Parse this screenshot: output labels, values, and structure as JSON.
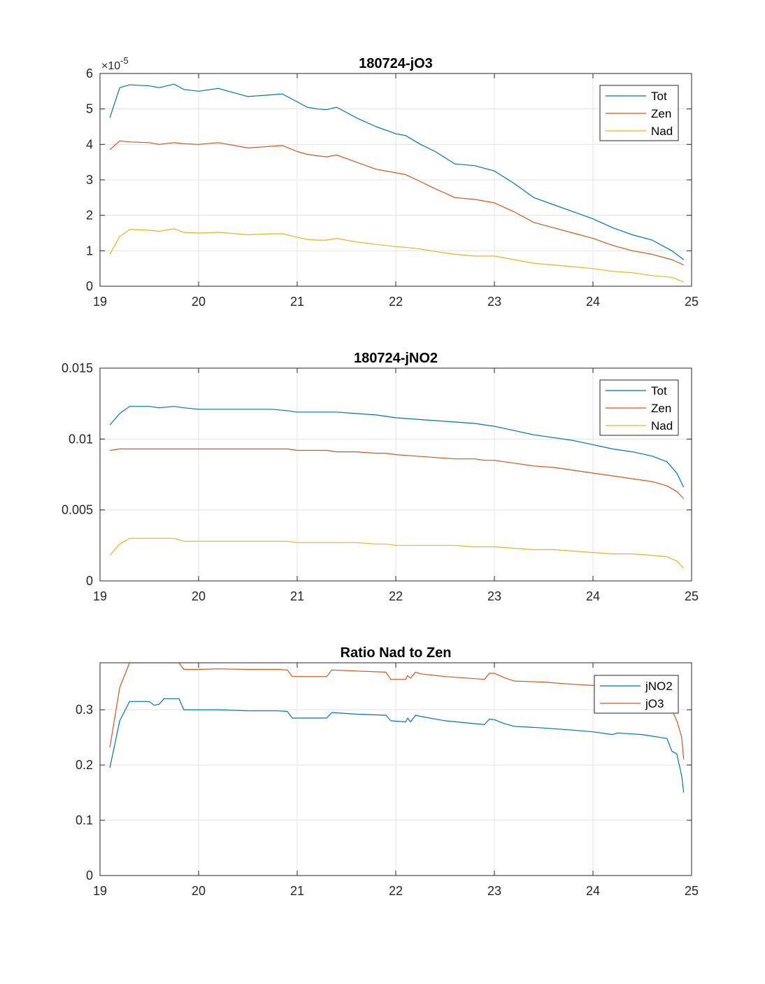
{
  "chart_data": [
    {
      "type": "line",
      "title": "180724-jO3",
      "xlim": [
        19,
        25
      ],
      "ylim": [
        0,
        6
      ],
      "xticks": [
        "19",
        "20",
        "21",
        "22",
        "23",
        "24",
        "25"
      ],
      "yticks": [
        "0",
        "1",
        "2",
        "3",
        "4",
        "5",
        "6"
      ],
      "yexponent": "-5",
      "grid": true,
      "legend_position": "top-right",
      "colors": [
        "#0072BD",
        "#D95319",
        "#EDB120"
      ],
      "series": [
        {
          "name": "Tot",
          "x": [
            19.1,
            19.2,
            19.3,
            19.5,
            19.6,
            19.75,
            19.85,
            20.0,
            20.2,
            20.3,
            20.5,
            20.75,
            20.85,
            21.0,
            21.1,
            21.2,
            21.3,
            21.4,
            21.6,
            21.8,
            22.0,
            22.1,
            22.25,
            22.4,
            22.6,
            22.8,
            23.0,
            23.2,
            23.4,
            23.6,
            23.8,
            24.0,
            24.2,
            24.4,
            24.6,
            24.8,
            24.92
          ],
          "y": [
            4.75,
            5.6,
            5.68,
            5.65,
            5.6,
            5.7,
            5.55,
            5.5,
            5.58,
            5.5,
            5.35,
            5.4,
            5.42,
            5.2,
            5.05,
            5.0,
            4.98,
            5.05,
            4.75,
            4.5,
            4.3,
            4.25,
            4.0,
            3.8,
            3.45,
            3.4,
            3.25,
            2.9,
            2.5,
            2.3,
            2.1,
            1.9,
            1.65,
            1.45,
            1.3,
            1.0,
            0.75
          ]
        },
        {
          "name": "Zen",
          "x": [
            19.1,
            19.2,
            19.3,
            19.5,
            19.6,
            19.75,
            19.85,
            20.0,
            20.2,
            20.3,
            20.5,
            20.75,
            20.85,
            21.0,
            21.1,
            21.2,
            21.3,
            21.4,
            21.6,
            21.8,
            22.0,
            22.1,
            22.25,
            22.4,
            22.6,
            22.8,
            23.0,
            23.2,
            23.4,
            23.6,
            23.8,
            24.0,
            24.2,
            24.4,
            24.6,
            24.8,
            24.92
          ],
          "y": [
            3.85,
            4.1,
            4.07,
            4.05,
            4.0,
            4.05,
            4.02,
            4.0,
            4.05,
            4.0,
            3.9,
            3.95,
            3.97,
            3.8,
            3.72,
            3.68,
            3.65,
            3.7,
            3.5,
            3.3,
            3.2,
            3.15,
            2.95,
            2.75,
            2.5,
            2.45,
            2.35,
            2.1,
            1.8,
            1.65,
            1.5,
            1.35,
            1.15,
            1.0,
            0.9,
            0.75,
            0.6
          ]
        },
        {
          "name": "Nad",
          "x": [
            19.1,
            19.2,
            19.3,
            19.5,
            19.6,
            19.75,
            19.85,
            20.0,
            20.2,
            20.3,
            20.5,
            20.75,
            20.85,
            21.0,
            21.1,
            21.2,
            21.3,
            21.4,
            21.6,
            21.8,
            22.0,
            22.1,
            22.25,
            22.4,
            22.6,
            22.8,
            23.0,
            23.2,
            23.4,
            23.6,
            23.8,
            24.0,
            24.2,
            24.4,
            24.6,
            24.8,
            24.92
          ],
          "y": [
            0.9,
            1.4,
            1.6,
            1.58,
            1.55,
            1.62,
            1.52,
            1.5,
            1.52,
            1.5,
            1.45,
            1.48,
            1.48,
            1.38,
            1.32,
            1.3,
            1.3,
            1.35,
            1.25,
            1.18,
            1.12,
            1.1,
            1.05,
            0.98,
            0.9,
            0.85,
            0.85,
            0.75,
            0.65,
            0.6,
            0.55,
            0.5,
            0.42,
            0.38,
            0.3,
            0.25,
            0.12
          ]
        }
      ]
    },
    {
      "type": "line",
      "title": "180724-jNO2",
      "xlim": [
        19,
        25
      ],
      "ylim": [
        0,
        0.015
      ],
      "xticks": [
        "19",
        "20",
        "21",
        "22",
        "23",
        "24",
        "25"
      ],
      "yticks": [
        "0",
        "0.005",
        "0.01",
        "0.015"
      ],
      "grid": true,
      "legend_position": "top-right",
      "colors": [
        "#0072BD",
        "#D95319",
        "#EDB120"
      ],
      "series": [
        {
          "name": "Tot",
          "x": [
            19.1,
            19.2,
            19.3,
            19.5,
            19.6,
            19.75,
            19.85,
            20.0,
            20.2,
            20.5,
            20.75,
            20.9,
            21.0,
            21.3,
            21.4,
            21.6,
            21.8,
            21.9,
            22.0,
            22.2,
            22.4,
            22.6,
            22.8,
            22.9,
            23.0,
            23.2,
            23.4,
            23.6,
            23.8,
            24.0,
            24.2,
            24.4,
            24.6,
            24.75,
            24.85,
            24.92
          ],
          "y": [
            0.011,
            0.0118,
            0.0123,
            0.0123,
            0.0122,
            0.0123,
            0.0122,
            0.0121,
            0.0121,
            0.0121,
            0.0121,
            0.012,
            0.0119,
            0.0119,
            0.0119,
            0.0118,
            0.0117,
            0.0116,
            0.0115,
            0.0114,
            0.0113,
            0.0112,
            0.0111,
            0.011,
            0.0109,
            0.0106,
            0.0103,
            0.0101,
            0.0099,
            0.0096,
            0.0093,
            0.0091,
            0.0088,
            0.0084,
            0.0076,
            0.0066
          ]
        },
        {
          "name": "Zen",
          "x": [
            19.1,
            19.2,
            19.3,
            19.5,
            19.6,
            19.75,
            19.85,
            20.0,
            20.2,
            20.5,
            20.75,
            20.9,
            21.0,
            21.3,
            21.4,
            21.6,
            21.8,
            21.9,
            22.0,
            22.2,
            22.4,
            22.6,
            22.8,
            22.9,
            23.0,
            23.2,
            23.4,
            23.6,
            23.8,
            24.0,
            24.2,
            24.4,
            24.6,
            24.75,
            24.85,
            24.92
          ],
          "y": [
            0.0092,
            0.0093,
            0.0093,
            0.0093,
            0.0093,
            0.0093,
            0.0093,
            0.0093,
            0.0093,
            0.0093,
            0.0093,
            0.0093,
            0.0092,
            0.0092,
            0.0091,
            0.0091,
            0.009,
            0.009,
            0.0089,
            0.0088,
            0.0087,
            0.0086,
            0.0086,
            0.0085,
            0.0085,
            0.0083,
            0.0081,
            0.008,
            0.0078,
            0.0076,
            0.0074,
            0.0072,
            0.007,
            0.0067,
            0.0063,
            0.0058
          ]
        },
        {
          "name": "Nad",
          "x": [
            19.1,
            19.2,
            19.3,
            19.5,
            19.6,
            19.75,
            19.85,
            20.0,
            20.2,
            20.5,
            20.75,
            20.9,
            21.0,
            21.3,
            21.4,
            21.6,
            21.8,
            21.9,
            22.0,
            22.2,
            22.4,
            22.6,
            22.8,
            22.9,
            23.0,
            23.2,
            23.4,
            23.6,
            23.8,
            24.0,
            24.2,
            24.4,
            24.6,
            24.75,
            24.85,
            24.92
          ],
          "y": [
            0.0018,
            0.0026,
            0.003,
            0.003,
            0.003,
            0.003,
            0.0028,
            0.0028,
            0.0028,
            0.0028,
            0.0028,
            0.0028,
            0.0027,
            0.0027,
            0.0027,
            0.0027,
            0.0026,
            0.0026,
            0.0025,
            0.0025,
            0.0025,
            0.0025,
            0.0024,
            0.0024,
            0.0024,
            0.0023,
            0.0022,
            0.0022,
            0.0021,
            0.002,
            0.0019,
            0.0019,
            0.0018,
            0.0017,
            0.0014,
            0.0009
          ]
        }
      ]
    },
    {
      "type": "line",
      "title": "Ratio Nad to Zen",
      "xlim": [
        19,
        25
      ],
      "ylim": [
        0,
        0.385
      ],
      "xticks": [
        "19",
        "20",
        "21",
        "22",
        "23",
        "24",
        "25"
      ],
      "yticks": [
        "0",
        "0.1",
        "0.2",
        "0.3"
      ],
      "grid": true,
      "legend_position": "top-right",
      "colors": [
        "#0072BD",
        "#D95319"
      ],
      "series": [
        {
          "name": "jNO2",
          "x": [
            19.1,
            19.2,
            19.3,
            19.5,
            19.55,
            19.6,
            19.65,
            19.8,
            19.85,
            20.0,
            20.2,
            20.5,
            20.8,
            20.9,
            20.95,
            21.3,
            21.35,
            21.6,
            21.9,
            21.95,
            22.1,
            22.12,
            22.15,
            22.2,
            22.25,
            22.5,
            22.9,
            22.95,
            23.0,
            23.1,
            23.2,
            23.5,
            23.8,
            24.0,
            24.2,
            24.25,
            24.5,
            24.75,
            24.8,
            24.85,
            24.9,
            24.92
          ],
          "y": [
            0.195,
            0.28,
            0.315,
            0.315,
            0.308,
            0.31,
            0.32,
            0.32,
            0.3,
            0.3,
            0.3,
            0.298,
            0.298,
            0.297,
            0.285,
            0.285,
            0.295,
            0.292,
            0.29,
            0.28,
            0.278,
            0.285,
            0.278,
            0.29,
            0.288,
            0.28,
            0.273,
            0.283,
            0.282,
            0.275,
            0.27,
            0.267,
            0.263,
            0.26,
            0.255,
            0.258,
            0.255,
            0.248,
            0.225,
            0.22,
            0.18,
            0.15
          ]
        },
        {
          "name": "jO3",
          "x": [
            19.1,
            19.2,
            19.3,
            19.5,
            19.55,
            19.6,
            19.65,
            19.8,
            19.85,
            20.0,
            20.2,
            20.5,
            20.8,
            20.9,
            20.95,
            21.3,
            21.35,
            21.6,
            21.9,
            21.95,
            22.1,
            22.12,
            22.15,
            22.2,
            22.25,
            22.5,
            22.9,
            22.95,
            23.0,
            23.1,
            23.2,
            23.5,
            23.8,
            24.0,
            24.2,
            24.25,
            24.5,
            24.75,
            24.8,
            24.85,
            24.9,
            24.92
          ],
          "y": [
            0.232,
            0.34,
            0.385,
            0.385,
            0.385,
            0.385,
            0.385,
            0.385,
            0.373,
            0.373,
            0.374,
            0.373,
            0.373,
            0.372,
            0.36,
            0.36,
            0.372,
            0.37,
            0.368,
            0.355,
            0.355,
            0.362,
            0.357,
            0.368,
            0.365,
            0.36,
            0.355,
            0.366,
            0.366,
            0.358,
            0.352,
            0.35,
            0.346,
            0.344,
            0.342,
            0.342,
            0.34,
            0.333,
            0.3,
            0.28,
            0.25,
            0.21
          ]
        }
      ]
    }
  ]
}
